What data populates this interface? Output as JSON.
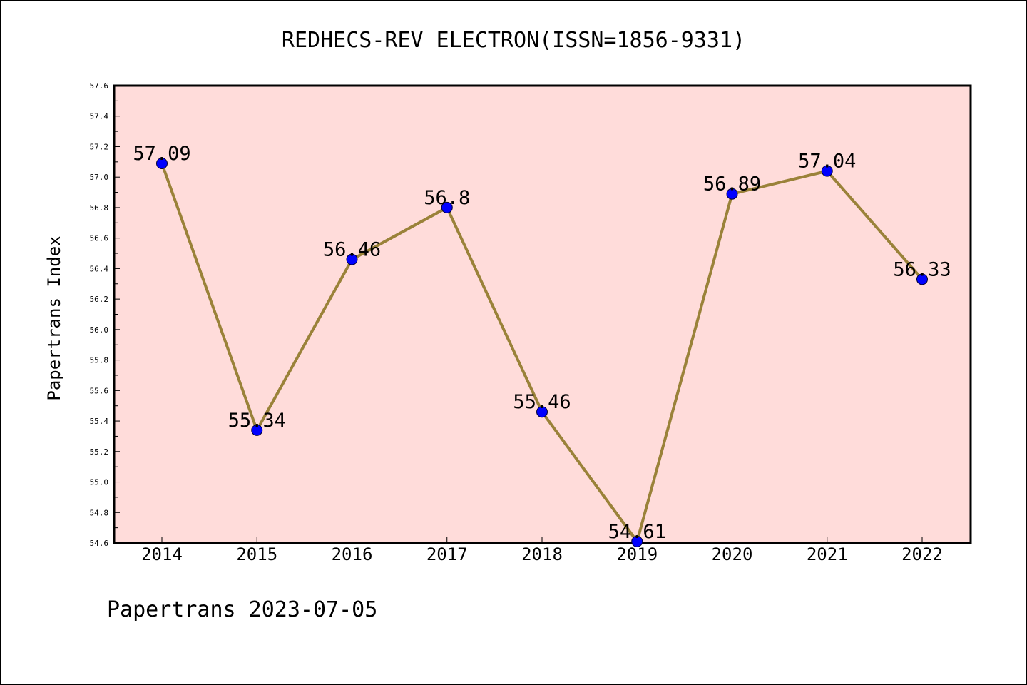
{
  "chart_data": {
    "type": "line",
    "title": "REDHECS-REV ELECTRON(ISSN=1856-9331)",
    "ylabel": "Papertrans Index",
    "xlabel": "",
    "categories": [
      "2014",
      "2015",
      "2016",
      "2017",
      "2018",
      "2019",
      "2020",
      "2021",
      "2022"
    ],
    "values": [
      57.09,
      55.34,
      56.46,
      56.8,
      55.46,
      54.61,
      56.89,
      57.04,
      56.33
    ],
    "data_labels": [
      "57.09",
      "55.34",
      "56.46",
      "56.8",
      "55.46",
      "54.61",
      "56.89",
      "57.04",
      "56.33"
    ],
    "ylim": [
      54.6,
      57.6
    ],
    "yticks": [
      "54.6",
      "54.8",
      "55.0",
      "55.2",
      "55.4",
      "55.6",
      "55.8",
      "56.0",
      "56.2",
      "56.4",
      "56.6",
      "56.8",
      "57.0",
      "57.2",
      "57.4",
      "57.6"
    ],
    "grid": false,
    "colors": {
      "plot_background": "#FFDCDA",
      "line": "#9A8239",
      "marker": "#0000FF"
    }
  },
  "footer": "Papertrans 2023-07-05"
}
